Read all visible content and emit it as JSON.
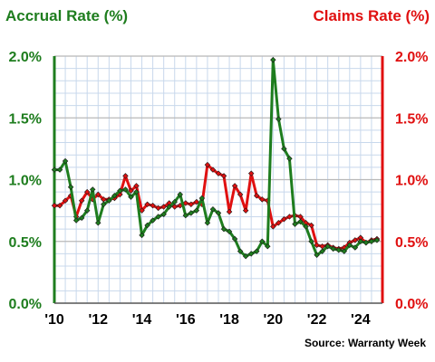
{
  "chart_data": {
    "type": "line",
    "left_axis_title": "Accrual Rate (%)",
    "right_axis_title": "Claims Rate (%)",
    "source": "Source: Warranty Week",
    "y_ticks": [
      "2.0%",
      "1.5%",
      "1.0%",
      "0.5%",
      "0.0%"
    ],
    "y_tick_values": [
      2.0,
      1.5,
      1.0,
      0.5,
      0.0
    ],
    "ylim": [
      0,
      2.0
    ],
    "xlim": [
      2010.0,
      2025.0
    ],
    "x_ticks": [
      "'10",
      "'12",
      "'14",
      "'16",
      "'18",
      "'20",
      "'22",
      "'24"
    ],
    "x_tick_values": [
      2010,
      2012,
      2014,
      2016,
      2018,
      2020,
      2022,
      2024
    ],
    "grid": true,
    "colors": {
      "accrual": "#1e7d1e",
      "claims": "#e01010",
      "left_axis": "#1e7d1e",
      "right_axis": "#e01010",
      "grid_h": "#b8b8b8",
      "grid_v": "#c8d8ec"
    },
    "series": [
      {
        "name": "Accrual Rate (%)",
        "axis": "left",
        "x": [
          2010.0,
          2010.25,
          2010.5,
          2010.75,
          2011.0,
          2011.25,
          2011.5,
          2011.75,
          2012.0,
          2012.25,
          2012.5,
          2012.75,
          2013.0,
          2013.25,
          2013.5,
          2013.75,
          2014.0,
          2014.25,
          2014.5,
          2014.75,
          2015.0,
          2015.25,
          2015.5,
          2015.75,
          2016.0,
          2016.25,
          2016.5,
          2016.75,
          2017.0,
          2017.25,
          2017.5,
          2017.75,
          2018.0,
          2018.25,
          2018.5,
          2018.75,
          2019.0,
          2019.25,
          2019.5,
          2019.75,
          2020.0,
          2020.25,
          2020.5,
          2020.75,
          2021.0,
          2021.25,
          2021.5,
          2021.75,
          2022.0,
          2022.25,
          2022.5,
          2022.75,
          2023.0,
          2023.25,
          2023.5,
          2023.75,
          2024.0,
          2024.25,
          2024.5,
          2024.75
        ],
        "values": [
          1.08,
          1.08,
          1.15,
          0.94,
          0.67,
          0.69,
          0.75,
          0.92,
          0.65,
          0.8,
          0.83,
          0.87,
          0.91,
          0.92,
          0.86,
          0.9,
          0.55,
          0.63,
          0.67,
          0.7,
          0.72,
          0.78,
          0.82,
          0.88,
          0.71,
          0.73,
          0.75,
          0.85,
          0.65,
          0.76,
          0.73,
          0.6,
          0.58,
          0.52,
          0.42,
          0.38,
          0.4,
          0.42,
          0.5,
          0.46,
          1.97,
          1.49,
          1.25,
          1.17,
          0.64,
          0.66,
          0.62,
          0.5,
          0.39,
          0.42,
          0.46,
          0.44,
          0.43,
          0.42,
          0.47,
          0.45,
          0.5,
          0.49,
          0.5,
          0.51
        ]
      },
      {
        "name": "Claims Rate (%)",
        "axis": "right",
        "x": [
          2010.0,
          2010.25,
          2010.5,
          2010.75,
          2011.0,
          2011.25,
          2011.5,
          2011.75,
          2012.0,
          2012.25,
          2012.5,
          2012.75,
          2013.0,
          2013.25,
          2013.5,
          2013.75,
          2014.0,
          2014.25,
          2014.5,
          2014.75,
          2015.0,
          2015.25,
          2015.5,
          2015.75,
          2016.0,
          2016.25,
          2016.5,
          2016.75,
          2017.0,
          2017.25,
          2017.5,
          2017.75,
          2018.0,
          2018.25,
          2018.5,
          2018.75,
          2019.0,
          2019.25,
          2019.5,
          2019.75,
          2020.0,
          2020.25,
          2020.5,
          2020.75,
          2021.0,
          2021.25,
          2021.5,
          2021.75,
          2022.0,
          2022.25,
          2022.5,
          2022.75,
          2023.0,
          2023.25,
          2023.5,
          2023.75,
          2024.0,
          2024.25,
          2024.5,
          2024.75
        ],
        "values": [
          0.79,
          0.79,
          0.83,
          0.87,
          0.7,
          0.83,
          0.9,
          0.84,
          0.88,
          0.84,
          0.84,
          0.85,
          0.88,
          1.03,
          0.91,
          0.95,
          0.75,
          0.8,
          0.79,
          0.77,
          0.78,
          0.81,
          0.78,
          0.79,
          0.81,
          0.8,
          0.82,
          0.8,
          1.12,
          1.08,
          1.05,
          1.03,
          0.74,
          0.95,
          0.88,
          0.75,
          1.05,
          0.87,
          0.84,
          0.83,
          0.62,
          0.65,
          0.68,
          0.7,
          0.71,
          0.7,
          0.65,
          0.63,
          0.47,
          0.46,
          0.47,
          0.45,
          0.44,
          0.45,
          0.49,
          0.51,
          0.53,
          0.49,
          0.51,
          0.52
        ]
      }
    ]
  }
}
